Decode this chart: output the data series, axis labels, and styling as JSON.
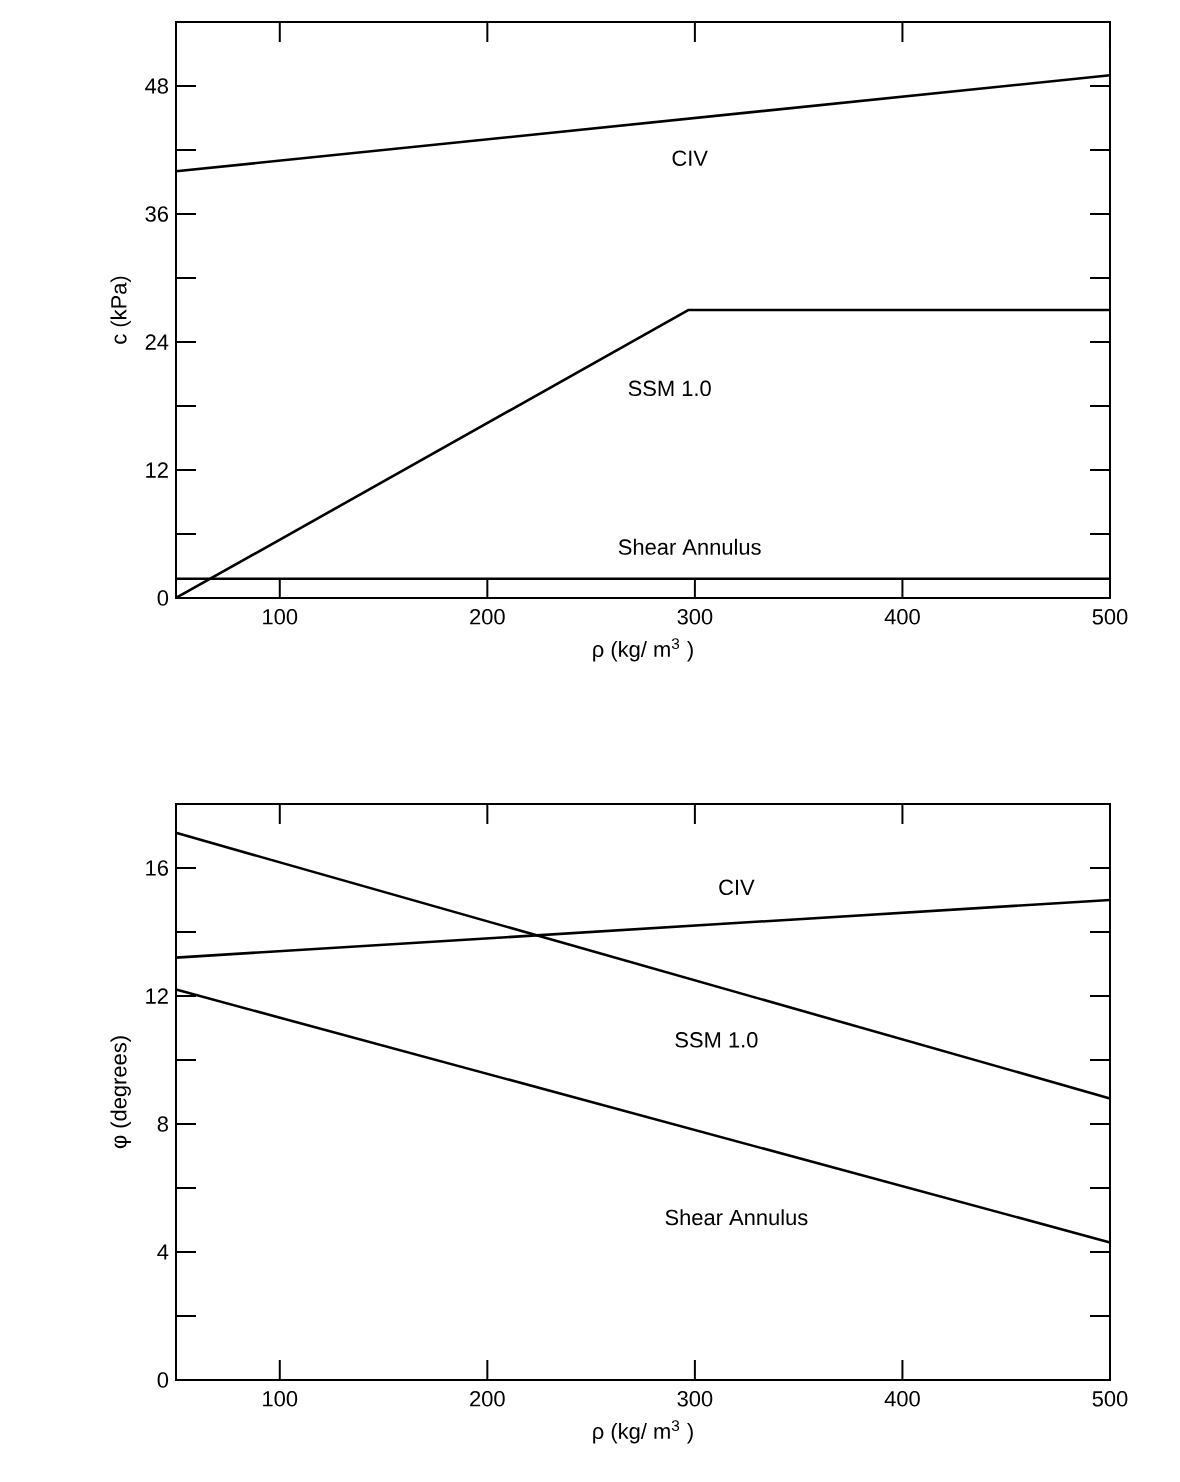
{
  "chart_data": [
    {
      "type": "line",
      "xlabel": "ρ (kg/ m$^{3}$ )",
      "ylabel": "c (kPa)",
      "xlim": [
        50,
        500
      ],
      "ylim": [
        0,
        54
      ],
      "xticks": [
        100,
        200,
        300,
        400,
        500
      ],
      "yticks": [
        0,
        {
          "value": 6,
          "label": null
        },
        12,
        {
          "value": 18,
          "label": null
        },
        24,
        {
          "value": 30,
          "label": null
        },
        36,
        {
          "value": 42,
          "label": null
        },
        48
      ],
      "series": [
        {
          "name": "CIV",
          "color": "#000000",
          "x": [
            50,
            500
          ],
          "values": [
            40,
            49
          ]
        },
        {
          "name": "SSM 1.0",
          "color": "#000000",
          "x": [
            50,
            297,
            500
          ],
          "values": [
            0,
            27,
            27
          ]
        },
        {
          "name": "Shear Annulus",
          "color": "#000000",
          "x": [
            50,
            500
          ],
          "values": [
            1.8,
            1.8
          ]
        }
      ]
    },
    {
      "type": "line",
      "xlabel": "ρ (kg/ m$^{3}$ )",
      "ylabel": "φ (degrees)",
      "xlim": [
        50,
        500
      ],
      "ylim": [
        0,
        18
      ],
      "xticks": [
        100,
        200,
        300,
        400,
        500
      ],
      "yticks": [
        0,
        {
          "value": 2,
          "label": null
        },
        4,
        {
          "value": 6,
          "label": null
        },
        8,
        {
          "value": 10,
          "label": null
        },
        12,
        {
          "value": 14,
          "label": null
        },
        16
      ],
      "series": [
        {
          "name": "CIV",
          "color": "#000000",
          "x": [
            50,
            500
          ],
          "values": [
            13.2,
            15.0
          ]
        },
        {
          "name": "SSM 1.0",
          "color": "#000000",
          "x": [
            50,
            500
          ],
          "values": [
            17.1,
            8.8
          ]
        },
        {
          "name": "Shear Annulus",
          "color": "#000000",
          "x": [
            50,
            500
          ],
          "values": [
            12.2,
            4.3
          ]
        }
      ]
    }
  ]
}
